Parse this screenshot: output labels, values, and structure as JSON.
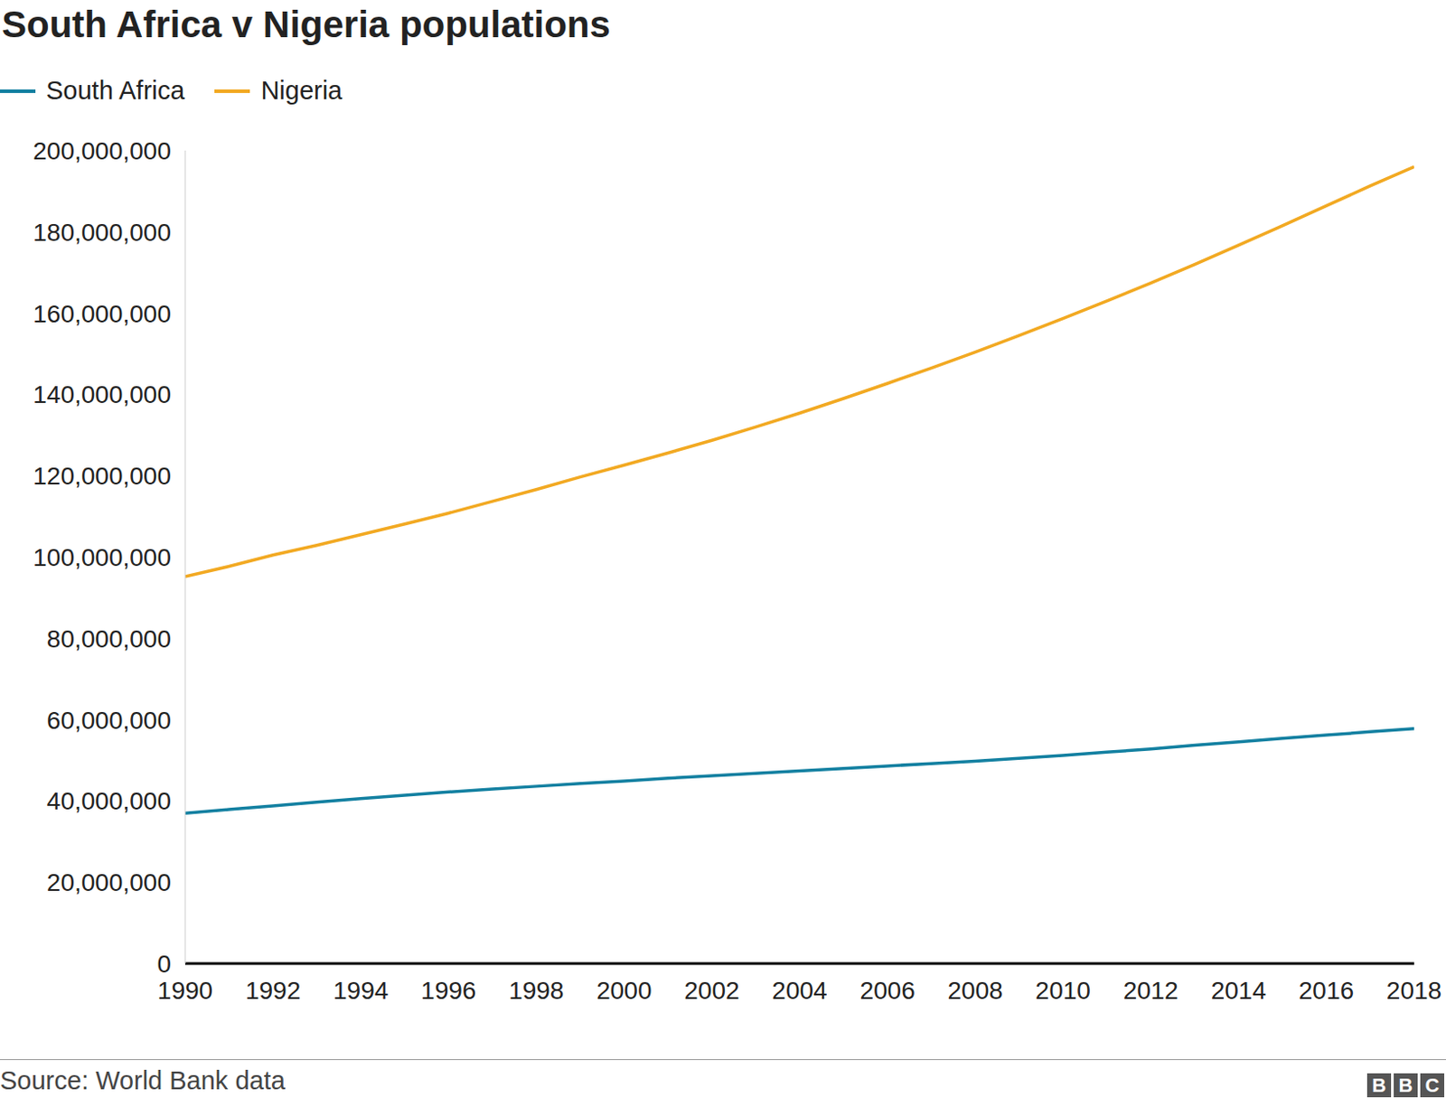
{
  "chart_data": {
    "type": "line",
    "title": "South Africa v Nigeria populations",
    "source": "Source: World Bank data",
    "logo": "BBC",
    "x": [
      1990,
      1991,
      1992,
      1993,
      1994,
      1995,
      1996,
      1997,
      1998,
      1999,
      2000,
      2001,
      2002,
      2003,
      2004,
      2005,
      2006,
      2007,
      2008,
      2009,
      2010,
      2011,
      2012,
      2013,
      2014,
      2015,
      2016,
      2017,
      2018
    ],
    "series": [
      {
        "name": "South Africa",
        "color": "#1380a1",
        "values": [
          37000000,
          37900000,
          38800000,
          39700000,
          40600000,
          41400000,
          42200000,
          42900000,
          43600000,
          44300000,
          44900000,
          45600000,
          46200000,
          46800000,
          47400000,
          48000000,
          48600000,
          49200000,
          49800000,
          50500000,
          51200000,
          52000000,
          52800000,
          53700000,
          54500000,
          55400000,
          56200000,
          57000000,
          57800000
        ]
      },
      {
        "name": "Nigeria",
        "color": "#f2a922",
        "values": [
          95200000,
          97700000,
          100500000,
          102900000,
          105500000,
          108100000,
          110800000,
          113700000,
          116600000,
          119700000,
          122600000,
          125600000,
          128700000,
          132000000,
          135400000,
          139000000,
          142700000,
          146500000,
          150400000,
          154500000,
          158700000,
          163000000,
          167400000,
          172000000,
          176700000,
          181500000,
          186400000,
          191300000,
          196000000
        ]
      }
    ],
    "xlim": [
      1990,
      2018
    ],
    "xticks": [
      1990,
      1992,
      1994,
      1996,
      1998,
      2000,
      2002,
      2004,
      2006,
      2008,
      2010,
      2012,
      2014,
      2016,
      2018
    ],
    "ylim": [
      0,
      200000000
    ],
    "yticks": [
      0,
      {
        "value": 20000000,
        "label": "20,000,000"
      },
      {
        "value": 40000000,
        "label": "40,000,000"
      },
      {
        "value": 60000000,
        "label": "60,000,000"
      },
      {
        "value": 80000000,
        "label": "80,000,000"
      },
      {
        "value": 100000000,
        "label": "100,000,000"
      },
      {
        "value": 120000000,
        "label": "120,000,000"
      },
      {
        "value": 140000000,
        "label": "140,000,000"
      },
      {
        "value": 160000000,
        "label": "160,000,000"
      },
      {
        "value": 180000000,
        "label": "180,000,000"
      },
      {
        "value": 200000000,
        "label": "200,000,000"
      }
    ],
    "grid": false,
    "legend": "top-left"
  }
}
